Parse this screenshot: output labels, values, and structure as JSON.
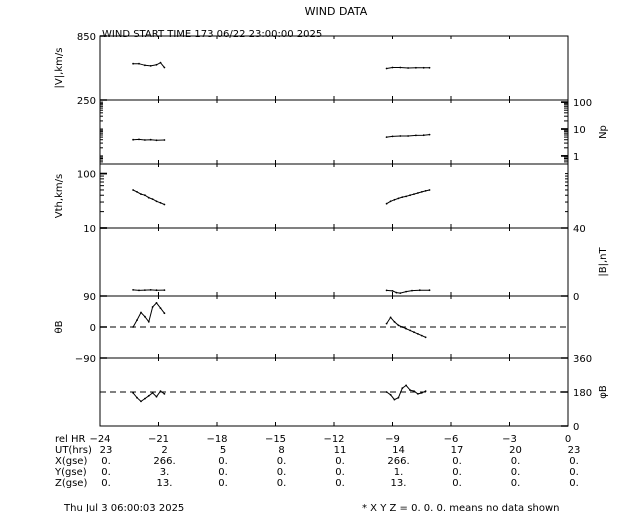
{
  "title": "WIND DATA",
  "subtitle": "WIND START TIME 173 06/22 23:00:00 2025",
  "footer": {
    "timestamp": "Thu Jul  3 06:00:03 2025",
    "note": "* X Y Z = 0. 0. 0. means no data shown"
  },
  "chart_data": {
    "type": "line",
    "x_range": [
      -24,
      0
    ],
    "x_ticks": [
      -24,
      -21,
      -18,
      -15,
      -12,
      -9,
      -6,
      -3,
      0
    ],
    "panels": [
      {
        "id": "speed",
        "label": "|V|,km/s",
        "axis_side": "left",
        "scale": "linear",
        "ylim": [
          250,
          850
        ],
        "tick_labels": [
          {
            "v": 850,
            "t": "850"
          },
          {
            "v": 250,
            "t": "250"
          }
        ],
        "segments": [
          {
            "x": [
              -22.3,
              -22.0,
              -21.7,
              -21.4,
              -21.1,
              -20.9,
              -20.7
            ],
            "y": [
              590,
              590,
              575,
              570,
              580,
              600,
              555
            ]
          },
          {
            "x": [
              -9.3,
              -9.0,
              -8.6,
              -8.2,
              -7.8,
              -7.4,
              -7.1
            ],
            "y": [
              545,
              555,
              555,
              550,
              552,
              552,
              552
            ]
          }
        ]
      },
      {
        "id": "density",
        "label": "Np",
        "axis_side": "right",
        "scale": "log",
        "ylim": [
          0.5,
          120
        ],
        "tick_labels": [
          {
            "v": 100,
            "t": "100"
          },
          {
            "v": 10,
            "t": "10"
          },
          {
            "v": 1,
            "t": "1"
          }
        ],
        "segments": [
          {
            "x": [
              -22.3,
              -22.0,
              -21.7,
              -21.4,
              -21.1,
              -20.7
            ],
            "y": [
              4.0,
              4.1,
              3.9,
              4.0,
              3.8,
              3.9
            ]
          },
          {
            "x": [
              -9.3,
              -9.0,
              -8.6,
              -8.2,
              -7.8,
              -7.4,
              -7.1
            ],
            "y": [
              5.0,
              5.3,
              5.5,
              5.5,
              5.8,
              5.9,
              6.2
            ]
          }
        ]
      },
      {
        "id": "thermal",
        "label": "Vth,km/s",
        "axis_side": "left",
        "scale": "log",
        "ylim": [
          10,
          150
        ],
        "tick_labels": [
          {
            "v": 100,
            "t": "100"
          },
          {
            "v": 10,
            "t": "10"
          }
        ],
        "segments": [
          {
            "x": [
              -22.3,
              -22.1,
              -21.9,
              -21.7,
              -21.5,
              -21.3,
              -21.1,
              -20.9,
              -20.7
            ],
            "y": [
              50,
              46,
              42,
              40,
              36,
              34,
              31,
              29,
              27
            ]
          },
          {
            "x": [
              -9.3,
              -9.1,
              -8.9,
              -8.7,
              -8.5,
              -8.3,
              -8.1,
              -7.9,
              -7.7,
              -7.5,
              -7.3,
              -7.1
            ],
            "y": [
              28,
              31,
              33,
              35,
              37,
              38,
              40,
              42,
              44,
              46,
              48,
              50
            ]
          }
        ]
      },
      {
        "id": "field",
        "label": "|B|,nT",
        "axis_side": "right",
        "scale": "linear",
        "ylim": [
          0,
          40
        ],
        "tick_labels": [
          {
            "v": 40,
            "t": "40"
          },
          {
            "v": 0,
            "t": "0"
          }
        ],
        "segments": [
          {
            "x": [
              -22.3,
              -22.0,
              -21.7,
              -21.4,
              -21.1,
              -20.7
            ],
            "y": [
              3.6,
              3.3,
              3.5,
              3.6,
              3.4,
              3.5
            ]
          },
          {
            "x": [
              -9.3,
              -9.0,
              -8.8,
              -8.6,
              -8.3,
              -8.0,
              -7.6,
              -7.1
            ],
            "y": [
              3.3,
              3.0,
              2.0,
              1.7,
              2.6,
              3.2,
              3.4,
              3.4
            ]
          }
        ]
      },
      {
        "id": "theta",
        "label": "θB",
        "axis_side": "left",
        "scale": "linear",
        "ylim": [
          -90,
          90
        ],
        "tick_labels": [
          {
            "v": 90,
            "t": "90"
          },
          {
            "v": 0,
            "t": "0"
          },
          {
            "v": -90,
            "t": "−90"
          }
        ],
        "dashed_ref": 0,
        "segments": [
          {
            "x": [
              -22.3,
              -22.1,
              -21.9,
              -21.7,
              -21.5,
              -21.3,
              -21.1,
              -20.9,
              -20.7
            ],
            "y": [
              0,
              20,
              42,
              30,
              15,
              58,
              70,
              55,
              40
            ]
          },
          {
            "x": [
              -9.3,
              -9.1,
              -8.9,
              -8.7,
              -8.5,
              -8.3,
              -8.1,
              -7.9,
              -7.7,
              -7.5,
              -7.3
            ],
            "y": [
              10,
              28,
              15,
              5,
              0,
              -5,
              -10,
              -15,
              -20,
              -25,
              -30
            ]
          }
        ]
      },
      {
        "id": "phi",
        "label": "φB",
        "axis_side": "right",
        "scale": "linear",
        "ylim": [
          0,
          360
        ],
        "tick_labels": [
          {
            "v": 360,
            "t": "360"
          },
          {
            "v": 180,
            "t": "180"
          },
          {
            "v": 0,
            "t": "0"
          }
        ],
        "dashed_ref": 180,
        "segments": [
          {
            "x": [
              -22.3,
              -22.1,
              -21.9,
              -21.7,
              -21.5,
              -21.3,
              -21.1,
              -20.9,
              -20.7
            ],
            "y": [
              175,
              150,
              130,
              145,
              160,
              175,
              155,
              185,
              170
            ]
          },
          {
            "x": [
              -9.3,
              -9.1,
              -8.9,
              -8.7,
              -8.5,
              -8.3,
              -8.1,
              -7.9,
              -7.7,
              -7.5,
              -7.3
            ],
            "y": [
              180,
              165,
              140,
              150,
              200,
              215,
              190,
              185,
              170,
              175,
              185
            ]
          }
        ]
      }
    ],
    "table": {
      "rows": [
        {
          "label": "rel HR",
          "values": [
            "−24",
            "−21",
            "−18",
            "−15",
            "−12",
            "−9",
            "−6",
            "−3",
            "0"
          ]
        },
        {
          "label": "UT(hrs)",
          "values": [
            "23",
            "2",
            "5",
            "8",
            "11",
            "14",
            "17",
            "20",
            "23"
          ]
        },
        {
          "label": "X(gse)",
          "values": [
            "0.",
            "266.",
            "0.",
            "0.",
            "0.",
            "266.",
            "0.",
            "0.",
            "0."
          ]
        },
        {
          "label": "Y(gse)",
          "values": [
            "0.",
            "3.",
            "0.",
            "0.",
            "0.",
            "1.",
            "0.",
            "0.",
            "0."
          ]
        },
        {
          "label": "Z(gse)",
          "values": [
            "0.",
            "13.",
            "0.",
            "0.",
            "0.",
            "13.",
            "0.",
            "0.",
            "0."
          ]
        }
      ]
    }
  }
}
